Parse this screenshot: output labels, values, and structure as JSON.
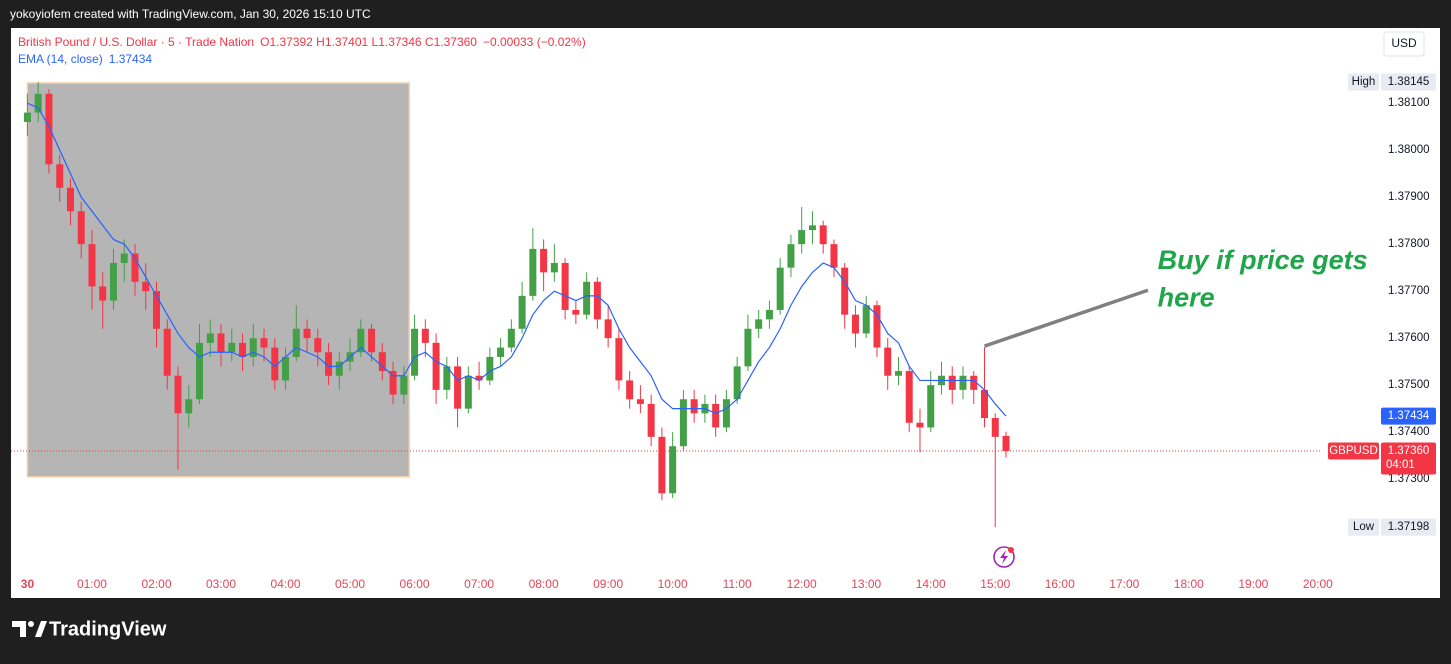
{
  "top_bar": "yokoyiofem created with TradingView.com, Jan 30, 2026 15:10 UTC",
  "footer": {
    "brand": "TradingView"
  },
  "chart_data": {
    "type": "candlestick",
    "symbol": "British Pound / U.S. Dollar · 5 · Trade Nation",
    "ohlc_legend": "O1.37392 H1.37401 L1.37346 C1.37360",
    "change": "−0.00033 (−0.02%)",
    "indicator_value": "1.37434",
    "currency": "USD",
    "up_color": "#43a047",
    "down_color": "#f23645",
    "grid": false,
    "xlim": [
      -15.3,
      1202
    ],
    "xticks": [
      {
        "value": 0,
        "label": "30"
      },
      {
        "value": 60,
        "label": "01:00"
      },
      {
        "value": 120,
        "label": "02:00"
      },
      {
        "value": 180,
        "label": "03:00"
      },
      {
        "value": 240,
        "label": "04:00"
      },
      {
        "value": 300,
        "label": "05:00"
      },
      {
        "value": 360,
        "label": "06:00"
      },
      {
        "value": 420,
        "label": "07:00"
      },
      {
        "value": 480,
        "label": "08:00"
      },
      {
        "value": 540,
        "label": "09:00"
      },
      {
        "value": 600,
        "label": "10:00"
      },
      {
        "value": 660,
        "label": "11:00"
      },
      {
        "value": 720,
        "label": "12:00"
      },
      {
        "value": 780,
        "label": "13:00"
      },
      {
        "value": 840,
        "label": "14:00"
      },
      {
        "value": 900,
        "label": "15:00"
      },
      {
        "value": 960,
        "label": "16:00"
      },
      {
        "value": 1020,
        "label": "17:00"
      },
      {
        "value": 1080,
        "label": "18:00"
      },
      {
        "value": 1140,
        "label": "19:00"
      },
      {
        "value": 1200,
        "label": "20:00"
      }
    ],
    "ylim": [
      1.37096,
      1.3826
    ],
    "yticks": [
      {
        "value": 1.381,
        "label": "1.38100"
      },
      {
        "value": 1.38,
        "label": "1.38000"
      },
      {
        "value": 1.379,
        "label": "1.37900"
      },
      {
        "value": 1.378,
        "label": "1.37800"
      },
      {
        "value": 1.377,
        "label": "1.37700"
      },
      {
        "value": 1.376,
        "label": "1.37600"
      },
      {
        "value": 1.375,
        "label": "1.37500"
      },
      {
        "value": 1.374,
        "label": "1.37400"
      },
      {
        "value": 1.373,
        "label": "1.37300"
      }
    ],
    "x": [
      0,
      10,
      20,
      30,
      40,
      50,
      60,
      70,
      80,
      90,
      100,
      110,
      120,
      130,
      140,
      150,
      160,
      170,
      180,
      190,
      200,
      210,
      220,
      230,
      240,
      250,
      260,
      270,
      280,
      290,
      300,
      310,
      320,
      330,
      340,
      350,
      360,
      370,
      380,
      390,
      400,
      410,
      420,
      430,
      440,
      450,
      460,
      470,
      480,
      490,
      500,
      510,
      520,
      530,
      540,
      550,
      560,
      570,
      580,
      590,
      600,
      610,
      620,
      630,
      640,
      650,
      660,
      670,
      680,
      690,
      700,
      710,
      720,
      730,
      740,
      750,
      760,
      770,
      780,
      790,
      800,
      810,
      820,
      830,
      840,
      850,
      860,
      870,
      880,
      890,
      900,
      910
    ],
    "ohlc": [
      [
        1.3806,
        1.3812,
        1.3803,
        1.3808
      ],
      [
        1.3808,
        1.38145,
        1.3806,
        1.3812
      ],
      [
        1.3812,
        1.3813,
        1.3795,
        1.3797
      ],
      [
        1.3797,
        1.3799,
        1.3789,
        1.3792
      ],
      [
        1.3792,
        1.3794,
        1.3784,
        1.3787
      ],
      [
        1.3787,
        1.3789,
        1.3777,
        1.378
      ],
      [
        1.378,
        1.3783,
        1.3766,
        1.3771
      ],
      [
        1.3771,
        1.3774,
        1.3762,
        1.3768
      ],
      [
        1.3768,
        1.3779,
        1.3766,
        1.3776
      ],
      [
        1.3776,
        1.3781,
        1.3772,
        1.3778
      ],
      [
        1.3778,
        1.378,
        1.3769,
        1.3772
      ],
      [
        1.3772,
        1.3776,
        1.3766,
        1.377
      ],
      [
        1.377,
        1.3772,
        1.3758,
        1.3762
      ],
      [
        1.3762,
        1.3764,
        1.3749,
        1.3752
      ],
      [
        1.3752,
        1.3754,
        1.3732,
        1.3744
      ],
      [
        1.3744,
        1.375,
        1.3741,
        1.3747
      ],
      [
        1.3747,
        1.3763,
        1.3746,
        1.3759
      ],
      [
        1.3759,
        1.3764,
        1.3756,
        1.3761
      ],
      [
        1.3761,
        1.3763,
        1.3754,
        1.3757
      ],
      [
        1.3757,
        1.3762,
        1.3755,
        1.3759
      ],
      [
        1.3759,
        1.3761,
        1.3753,
        1.3756
      ],
      [
        1.3756,
        1.3763,
        1.3754,
        1.376
      ],
      [
        1.376,
        1.3762,
        1.3755,
        1.3758
      ],
      [
        1.3758,
        1.376,
        1.3749,
        1.3751
      ],
      [
        1.3751,
        1.3758,
        1.3749,
        1.3756
      ],
      [
        1.3756,
        1.3767,
        1.3755,
        1.3762
      ],
      [
        1.3762,
        1.3764,
        1.3757,
        1.376
      ],
      [
        1.376,
        1.3762,
        1.3754,
        1.3757
      ],
      [
        1.3757,
        1.3759,
        1.375,
        1.3752
      ],
      [
        1.3752,
        1.3757,
        1.3749,
        1.3755
      ],
      [
        1.3755,
        1.376,
        1.3753,
        1.3757
      ],
      [
        1.3757,
        1.3764,
        1.3756,
        1.3762
      ],
      [
        1.3762,
        1.3763,
        1.3755,
        1.3757
      ],
      [
        1.3757,
        1.3759,
        1.3751,
        1.3753
      ],
      [
        1.3753,
        1.3755,
        1.3746,
        1.3748
      ],
      [
        1.3748,
        1.3754,
        1.3746,
        1.3752
      ],
      [
        1.3752,
        1.3765,
        1.3751,
        1.3762
      ],
      [
        1.3762,
        1.3764,
        1.3756,
        1.3759
      ],
      [
        1.3759,
        1.3761,
        1.3746,
        1.3749
      ],
      [
        1.3749,
        1.3756,
        1.3747,
        1.3754
      ],
      [
        1.3754,
        1.3756,
        1.3741,
        1.3745
      ],
      [
        1.3745,
        1.3754,
        1.3744,
        1.3752
      ],
      [
        1.3752,
        1.3755,
        1.3749,
        1.3751
      ],
      [
        1.3751,
        1.3758,
        1.375,
        1.3756
      ],
      [
        1.3756,
        1.376,
        1.3754,
        1.3758
      ],
      [
        1.3758,
        1.3764,
        1.3757,
        1.3762
      ],
      [
        1.3762,
        1.3772,
        1.3761,
        1.3769
      ],
      [
        1.3769,
        1.37834,
        1.3768,
        1.3779
      ],
      [
        1.3779,
        1.3781,
        1.377,
        1.3774
      ],
      [
        1.3774,
        1.378,
        1.3772,
        1.3776
      ],
      [
        1.3776,
        1.3777,
        1.3764,
        1.3766
      ],
      [
        1.3766,
        1.3768,
        1.3763,
        1.3765
      ],
      [
        1.3765,
        1.3774,
        1.3764,
        1.3772
      ],
      [
        1.3772,
        1.3773,
        1.3762,
        1.3764
      ],
      [
        1.3764,
        1.3767,
        1.3758,
        1.376
      ],
      [
        1.376,
        1.3762,
        1.3749,
        1.3751
      ],
      [
        1.3751,
        1.3753,
        1.3745,
        1.3747
      ],
      [
        1.3747,
        1.375,
        1.3744,
        1.3746
      ],
      [
        1.3746,
        1.3748,
        1.3737,
        1.3739
      ],
      [
        1.3739,
        1.3741,
        1.37255,
        1.3727
      ],
      [
        1.3727,
        1.374,
        1.3726,
        1.3737
      ],
      [
        1.3737,
        1.3749,
        1.3736,
        1.3747
      ],
      [
        1.3747,
        1.3749,
        1.3742,
        1.3744
      ],
      [
        1.3744,
        1.3748,
        1.3742,
        1.3746
      ],
      [
        1.3746,
        1.3748,
        1.3739,
        1.3741
      ],
      [
        1.3741,
        1.3749,
        1.374,
        1.3747
      ],
      [
        1.3747,
        1.3756,
        1.3746,
        1.3754
      ],
      [
        1.3754,
        1.3765,
        1.3753,
        1.3762
      ],
      [
        1.3762,
        1.3766,
        1.376,
        1.3764
      ],
      [
        1.3764,
        1.3768,
        1.3762,
        1.3766
      ],
      [
        1.3766,
        1.3777,
        1.3765,
        1.3775
      ],
      [
        1.3775,
        1.3782,
        1.3773,
        1.378
      ],
      [
        1.378,
        1.37879,
        1.3778,
        1.3783
      ],
      [
        1.3783,
        1.3787,
        1.378,
        1.3784
      ],
      [
        1.3784,
        1.3785,
        1.3778,
        1.378
      ],
      [
        1.378,
        1.3781,
        1.3773,
        1.3775
      ],
      [
        1.3775,
        1.3776,
        1.3762,
        1.3765
      ],
      [
        1.3765,
        1.3767,
        1.3758,
        1.3761
      ],
      [
        1.3761,
        1.3769,
        1.376,
        1.3767
      ],
      [
        1.3767,
        1.3768,
        1.3756,
        1.3758
      ],
      [
        1.3758,
        1.376,
        1.3749,
        1.3752
      ],
      [
        1.3752,
        1.3756,
        1.375,
        1.3753
      ],
      [
        1.3753,
        1.3754,
        1.374,
        1.3742
      ],
      [
        1.3742,
        1.3745,
        1.37357,
        1.3741
      ],
      [
        1.3741,
        1.3753,
        1.374,
        1.375
      ],
      [
        1.375,
        1.3755,
        1.3748,
        1.3752
      ],
      [
        1.3752,
        1.3754,
        1.3746,
        1.3749
      ],
      [
        1.3749,
        1.3754,
        1.3747,
        1.3752
      ],
      [
        1.3752,
        1.3753,
        1.3746,
        1.3749
      ],
      [
        1.3749,
        1.37581,
        1.3741,
        1.3743
      ],
      [
        1.3743,
        1.3744,
        1.37198,
        1.3739
      ],
      [
        1.37392,
        1.37401,
        1.37346,
        1.3736
      ]
    ],
    "series": [
      {
        "name": "EMA (14, close)",
        "color": "#2962ff",
        "values": [
          1.381,
          1.3809,
          1.3805,
          1.38,
          1.3795,
          1.379,
          1.3787,
          1.3784,
          1.3781,
          1.378,
          1.3777,
          1.3773,
          1.3769,
          1.3765,
          1.3761,
          1.3758,
          1.3756,
          1.3757,
          1.3757,
          1.3757,
          1.3756,
          1.3757,
          1.3756,
          1.3754,
          1.3756,
          1.3758,
          1.3757,
          1.3756,
          1.3754,
          1.3754,
          1.3756,
          1.3758,
          1.3756,
          1.3754,
          1.3752,
          1.3752,
          1.3756,
          1.3757,
          1.3755,
          1.3754,
          1.3751,
          1.3752,
          1.3751,
          1.3753,
          1.3754,
          1.3756,
          1.376,
          1.3765,
          1.3768,
          1.377,
          1.3769,
          1.3768,
          1.3769,
          1.3769,
          1.3767,
          1.3762,
          1.3758,
          1.3755,
          1.3752,
          1.3747,
          1.3745,
          1.3745,
          1.3745,
          1.3745,
          1.3744,
          1.3745,
          1.3747,
          1.3751,
          1.3755,
          1.3758,
          1.3762,
          1.3767,
          1.3771,
          1.3774,
          1.3776,
          1.3775,
          1.3772,
          1.3768,
          1.3767,
          1.3765,
          1.3761,
          1.3759,
          1.3754,
          1.3751,
          1.3751,
          1.3751,
          1.3751,
          1.3751,
          1.3751,
          1.3749,
          1.3746,
          1.37434
        ]
      }
    ],
    "price_tags": [
      {
        "name": "High",
        "value": 1.38145,
        "label": "1.38145",
        "color": "#e8ebf2",
        "text_color": "#131722"
      },
      {
        "value": 1.37434,
        "label": "1.37434",
        "color": "#2962ff",
        "text_color": "#ffffff"
      },
      {
        "name": "GBPUSD",
        "value": 1.3736,
        "label": "1.37360",
        "countdown": "04:01",
        "color": "#f23645",
        "text_color": "#ffffff"
      },
      {
        "name": "Low",
        "value": 1.37198,
        "label": "1.37198",
        "color": "#e8ebf2",
        "text_color": "#131722"
      }
    ],
    "drawings": {
      "box": {
        "x": [
          0,
          355
        ],
        "y": [
          1.37305,
          1.38143
        ],
        "color": "#b5b5b5"
      },
      "trendline": {
        "x": [
          890,
          1042
        ],
        "y": [
          1.37583,
          1.37702
        ],
        "color": "#808080"
      },
      "annotation": {
        "lines": [
          "Buy if price gets",
          "here"
        ],
        "x": 1051,
        "y": [
          1.37762,
          1.37682
        ],
        "color": "#1fa64a"
      }
    }
  }
}
